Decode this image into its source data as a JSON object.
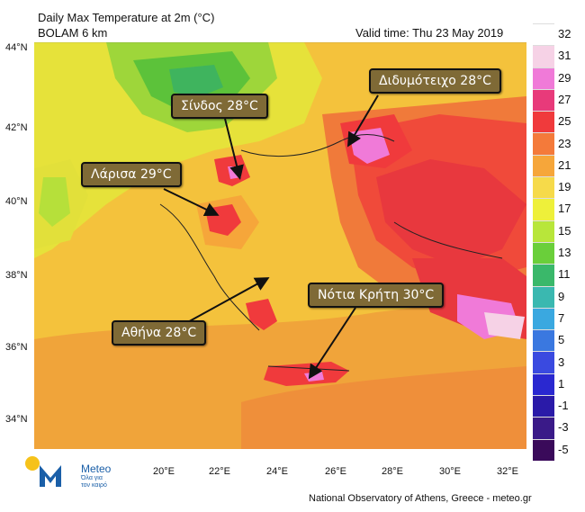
{
  "header": {
    "title_line1": "Daily Max Temperature at 2m (°C)",
    "title_line2": "BOLAM 6 km",
    "valid_time": "Valid time: Thu 23 May 2019"
  },
  "map": {
    "latitudes": [
      "44°N",
      "42°N",
      "40°N",
      "38°N",
      "36°N",
      "34°N"
    ],
    "longitudes": [
      "20°E",
      "22°E",
      "24°E",
      "26°E",
      "28°E",
      "30°E",
      "32°E"
    ]
  },
  "callouts": {
    "didymoteicho": "Διδυμότειχο 28°C",
    "sindos": "Σίνδος 28°C",
    "larisa": "Λάρισα 29°C",
    "athina": "Αθήνα 28°C",
    "kriti": "Νότια Κρήτη 30°C"
  },
  "legend": {
    "labels": [
      "32",
      "31",
      "29",
      "27",
      "25",
      "23",
      "21",
      "19",
      "17",
      "15",
      "13",
      "11",
      "9",
      "7",
      "5",
      "3",
      "1",
      "-1",
      "-3",
      "-5"
    ],
    "colors": [
      "#ffffff",
      "#f6d2e6",
      "#f07ad8",
      "#e83a7a",
      "#f03a3c",
      "#f47a3a",
      "#f6a63a",
      "#f6da4a",
      "#eef03a",
      "#b8e63a",
      "#6acf3a",
      "#3ab86a",
      "#3ab8b0",
      "#3aa8e0",
      "#3a78e0",
      "#3a4ae0",
      "#2a28d0",
      "#2a1aa8",
      "#3a1a88",
      "#3a0a5a"
    ]
  },
  "branding": {
    "logo_name": "Meteo",
    "logo_tagline_1": "Όλα για",
    "logo_tagline_2": "τον καιρό",
    "credit": "National Observatory of Athens, Greece - meteo.gr"
  }
}
